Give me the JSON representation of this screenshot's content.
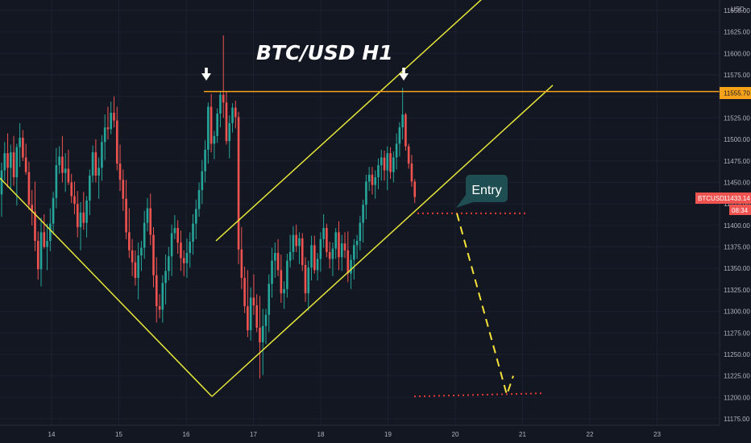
{
  "chart_data": {
    "type": "candlestick",
    "title": "BTC/USD H1",
    "currency": "USD",
    "symbol": "BTCUSD",
    "y_axis": {
      "min": 11175,
      "max": 11650,
      "ticks": [
        "11650.00",
        "11625.00",
        "11600.00",
        "11575.00",
        "11550.00",
        "11525.00",
        "11500.00",
        "11475.00",
        "11450.00",
        "11425.00",
        "11400.00",
        "11375.00",
        "11350.00",
        "11325.00",
        "11300.00",
        "11275.00",
        "11250.00",
        "11225.00",
        "11200.00",
        "11175.00"
      ]
    },
    "x_axis": {
      "ticks": [
        "14",
        "15",
        "16",
        "17",
        "18",
        "19",
        "20",
        "21",
        "22",
        "23"
      ]
    },
    "price_tags": {
      "resistance": "11555.70",
      "current": "11433.14",
      "countdown": "08:34"
    },
    "annotation": "Entry",
    "colors": {
      "background": "#131722",
      "up": "#26a69a",
      "down": "#ef5350",
      "trend_lines": "#e6e63a",
      "resistance": "#f7a21b",
      "targets": "#e53935",
      "path": "#f5e33b",
      "entry_box": "#1e4e52"
    },
    "candles": [
      [
        11436,
        11473,
        11410,
        11464
      ],
      [
        11464,
        11497,
        11452,
        11484
      ],
      [
        11484,
        11507,
        11444,
        11467
      ],
      [
        11467,
        11494,
        11441,
        11485
      ],
      [
        11485,
        11504,
        11446,
        11456
      ],
      [
        11456,
        11495,
        11423,
        11491
      ],
      [
        11491,
        11519,
        11468,
        11502
      ],
      [
        11502,
        11511,
        11475,
        11479
      ],
      [
        11479,
        11495,
        11459,
        11462
      ],
      [
        11462,
        11474,
        11418,
        11424
      ],
      [
        11424,
        11441,
        11400,
        11416
      ],
      [
        11416,
        11451,
        11370,
        11382
      ],
      [
        11382,
        11393,
        11337,
        11349
      ],
      [
        11349,
        11409,
        11329,
        11392
      ],
      [
        11392,
        11413,
        11373,
        11375
      ],
      [
        11375,
        11402,
        11348,
        11382
      ],
      [
        11382,
        11420,
        11370,
        11402
      ],
      [
        11402,
        11439,
        11389,
        11432
      ],
      [
        11432,
        11490,
        11420,
        11470
      ],
      [
        11470,
        11492,
        11460,
        11480
      ],
      [
        11480,
        11504,
        11450,
        11461
      ],
      [
        11461,
        11484,
        11439,
        11466
      ],
      [
        11466,
        11488,
        11447,
        11450
      ],
      [
        11450,
        11460,
        11426,
        11434
      ],
      [
        11434,
        11451,
        11413,
        11425
      ],
      [
        11425,
        11440,
        11386,
        11398
      ],
      [
        11398,
        11427,
        11371,
        11415
      ],
      [
        11415,
        11439,
        11395,
        11403
      ],
      [
        11403,
        11434,
        11386,
        11429
      ],
      [
        11429,
        11465,
        11412,
        11458
      ],
      [
        11458,
        11493,
        11450,
        11485
      ],
      [
        11485,
        11500,
        11450,
        11458
      ],
      [
        11458,
        11479,
        11431,
        11467
      ],
      [
        11467,
        11505,
        11452,
        11497
      ],
      [
        11497,
        11529,
        11476,
        11514
      ],
      [
        11514,
        11538,
        11500,
        11512
      ],
      [
        11512,
        11544,
        11506,
        11531
      ],
      [
        11531,
        11550,
        11514,
        11522
      ],
      [
        11522,
        11538,
        11464,
        11472
      ],
      [
        11472,
        11494,
        11440,
        11453
      ],
      [
        11453,
        11465,
        11417,
        11431
      ],
      [
        11431,
        11453,
        11384,
        11392
      ],
      [
        11392,
        11420,
        11362,
        11371
      ],
      [
        11371,
        11384,
        11341,
        11357
      ],
      [
        11357,
        11371,
        11330,
        11339
      ],
      [
        11339,
        11380,
        11314,
        11365
      ],
      [
        11365,
        11382,
        11347,
        11374
      ],
      [
        11374,
        11417,
        11361,
        11403
      ],
      [
        11403,
        11432,
        11393,
        11420
      ],
      [
        11420,
        11437,
        11377,
        11389
      ],
      [
        11389,
        11398,
        11328,
        11342
      ],
      [
        11342,
        11363,
        11287,
        11306
      ],
      [
        11306,
        11320,
        11292,
        11302
      ],
      [
        11302,
        11342,
        11287,
        11333
      ],
      [
        11333,
        11366,
        11308,
        11347
      ],
      [
        11347,
        11375,
        11336,
        11364
      ],
      [
        11364,
        11401,
        11341,
        11391
      ],
      [
        11391,
        11412,
        11384,
        11397
      ],
      [
        11397,
        11406,
        11367,
        11380
      ],
      [
        11380,
        11394,
        11347,
        11362
      ],
      [
        11362,
        11371,
        11341,
        11356
      ],
      [
        11356,
        11385,
        11339,
        11368
      ],
      [
        11368,
        11392,
        11351,
        11381
      ],
      [
        11381,
        11413,
        11366,
        11402
      ],
      [
        11402,
        11430,
        11384,
        11419
      ],
      [
        11419,
        11450,
        11410,
        11441
      ],
      [
        11441,
        11476,
        11425,
        11463
      ],
      [
        11463,
        11499,
        11450,
        11488
      ],
      [
        11488,
        11543,
        11472,
        11538
      ],
      [
        11538,
        11553,
        11485,
        11495
      ],
      [
        11495,
        11510,
        11477,
        11504
      ],
      [
        11504,
        11536,
        11496,
        11530
      ],
      [
        11530,
        11556,
        11514,
        11552
      ],
      [
        11552,
        11621,
        11525,
        11543
      ],
      [
        11543,
        11556,
        11494,
        11498
      ],
      [
        11498,
        11528,
        11478,
        11519
      ],
      [
        11519,
        11542,
        11508,
        11537
      ],
      [
        11537,
        11545,
        11513,
        11526
      ],
      [
        11526,
        11532,
        11355,
        11372
      ],
      [
        11372,
        11398,
        11326,
        11339
      ],
      [
        11339,
        11352,
        11298,
        11306
      ],
      [
        11306,
        11348,
        11270,
        11278
      ],
      [
        11278,
        11328,
        11266,
        11316
      ],
      [
        11316,
        11343,
        11296,
        11307
      ],
      [
        11307,
        11320,
        11276,
        11281
      ],
      [
        11281,
        11318,
        11222,
        11264
      ],
      [
        11264,
        11303,
        11226,
        11283
      ],
      [
        11283,
        11303,
        11262,
        11296
      ],
      [
        11296,
        11343,
        11276,
        11332
      ],
      [
        11332,
        11374,
        11316,
        11359
      ],
      [
        11359,
        11380,
        11339,
        11368
      ],
      [
        11368,
        11384,
        11341,
        11348
      ],
      [
        11348,
        11366,
        11310,
        11321
      ],
      [
        11321,
        11335,
        11303,
        11326
      ],
      [
        11326,
        11367,
        11316,
        11359
      ],
      [
        11359,
        11389,
        11351,
        11369
      ],
      [
        11369,
        11399,
        11360,
        11389
      ],
      [
        11389,
        11401,
        11369,
        11376
      ],
      [
        11376,
        11392,
        11355,
        11385
      ],
      [
        11385,
        11391,
        11347,
        11354
      ],
      [
        11354,
        11363,
        11311,
        11321
      ],
      [
        11321,
        11359,
        11301,
        11351
      ],
      [
        11351,
        11388,
        11336,
        11377
      ],
      [
        11377,
        11388,
        11344,
        11348
      ],
      [
        11348,
        11368,
        11336,
        11361
      ],
      [
        11361,
        11392,
        11346,
        11384
      ],
      [
        11384,
        11413,
        11374,
        11397
      ],
      [
        11397,
        11402,
        11363,
        11369
      ],
      [
        11369,
        11381,
        11350,
        11361
      ],
      [
        11361,
        11380,
        11341,
        11373
      ],
      [
        11373,
        11397,
        11361,
        11392
      ],
      [
        11392,
        11405,
        11348,
        11363
      ],
      [
        11363,
        11389,
        11347,
        11379
      ],
      [
        11379,
        11392,
        11362,
        11371
      ],
      [
        11371,
        11393,
        11334,
        11344
      ],
      [
        11344,
        11366,
        11326,
        11360
      ],
      [
        11360,
        11384,
        11337,
        11377
      ],
      [
        11377,
        11389,
        11361,
        11382
      ],
      [
        11382,
        11411,
        11371,
        11403
      ],
      [
        11403,
        11430,
        11380,
        11424
      ],
      [
        11424,
        11459,
        11407,
        11451
      ],
      [
        11451,
        11468,
        11440,
        11459
      ],
      [
        11459,
        11468,
        11436,
        11447
      ],
      [
        11447,
        11464,
        11431,
        11456
      ],
      [
        11456,
        11478,
        11442,
        11470
      ],
      [
        11470,
        11488,
        11452,
        11479
      ],
      [
        11479,
        11487,
        11452,
        11464
      ],
      [
        11464,
        11492,
        11441,
        11484
      ],
      [
        11484,
        11491,
        11454,
        11462
      ],
      [
        11462,
        11486,
        11450,
        11479
      ],
      [
        11479,
        11507,
        11465,
        11495
      ],
      [
        11495,
        11520,
        11480,
        11514
      ],
      [
        11514,
        11560,
        11500,
        11529
      ],
      [
        11529,
        11531,
        11487,
        11492
      ],
      [
        11492,
        11495,
        11466,
        11472
      ],
      [
        11472,
        11482,
        11445,
        11451
      ],
      [
        11451,
        11454,
        11426,
        11433
      ]
    ],
    "overlays": {
      "v_left": {
        "from": [
          0,
          11455
        ],
        "to": [
          263,
          11201
        ]
      },
      "support": {
        "from": [
          263,
          11201
        ],
        "to": [
          686,
          11563
        ]
      },
      "channel_top": {
        "from": [
          268,
          11382
        ],
        "to": [
          606,
          11670
        ]
      },
      "resistance_level": 11555.7,
      "resistance_start_x": 253,
      "entry_level": 11414,
      "entry_from_x": 518,
      "entry_to_x": 655,
      "target_level": 11202,
      "target_from_x": 514,
      "target_to_x": 676,
      "path": [
        [
          567,
          11414
        ],
        [
          629,
          11203
        ],
        [
          637,
          11225
        ]
      ],
      "arrows_x": [
        256,
        501
      ]
    }
  }
}
